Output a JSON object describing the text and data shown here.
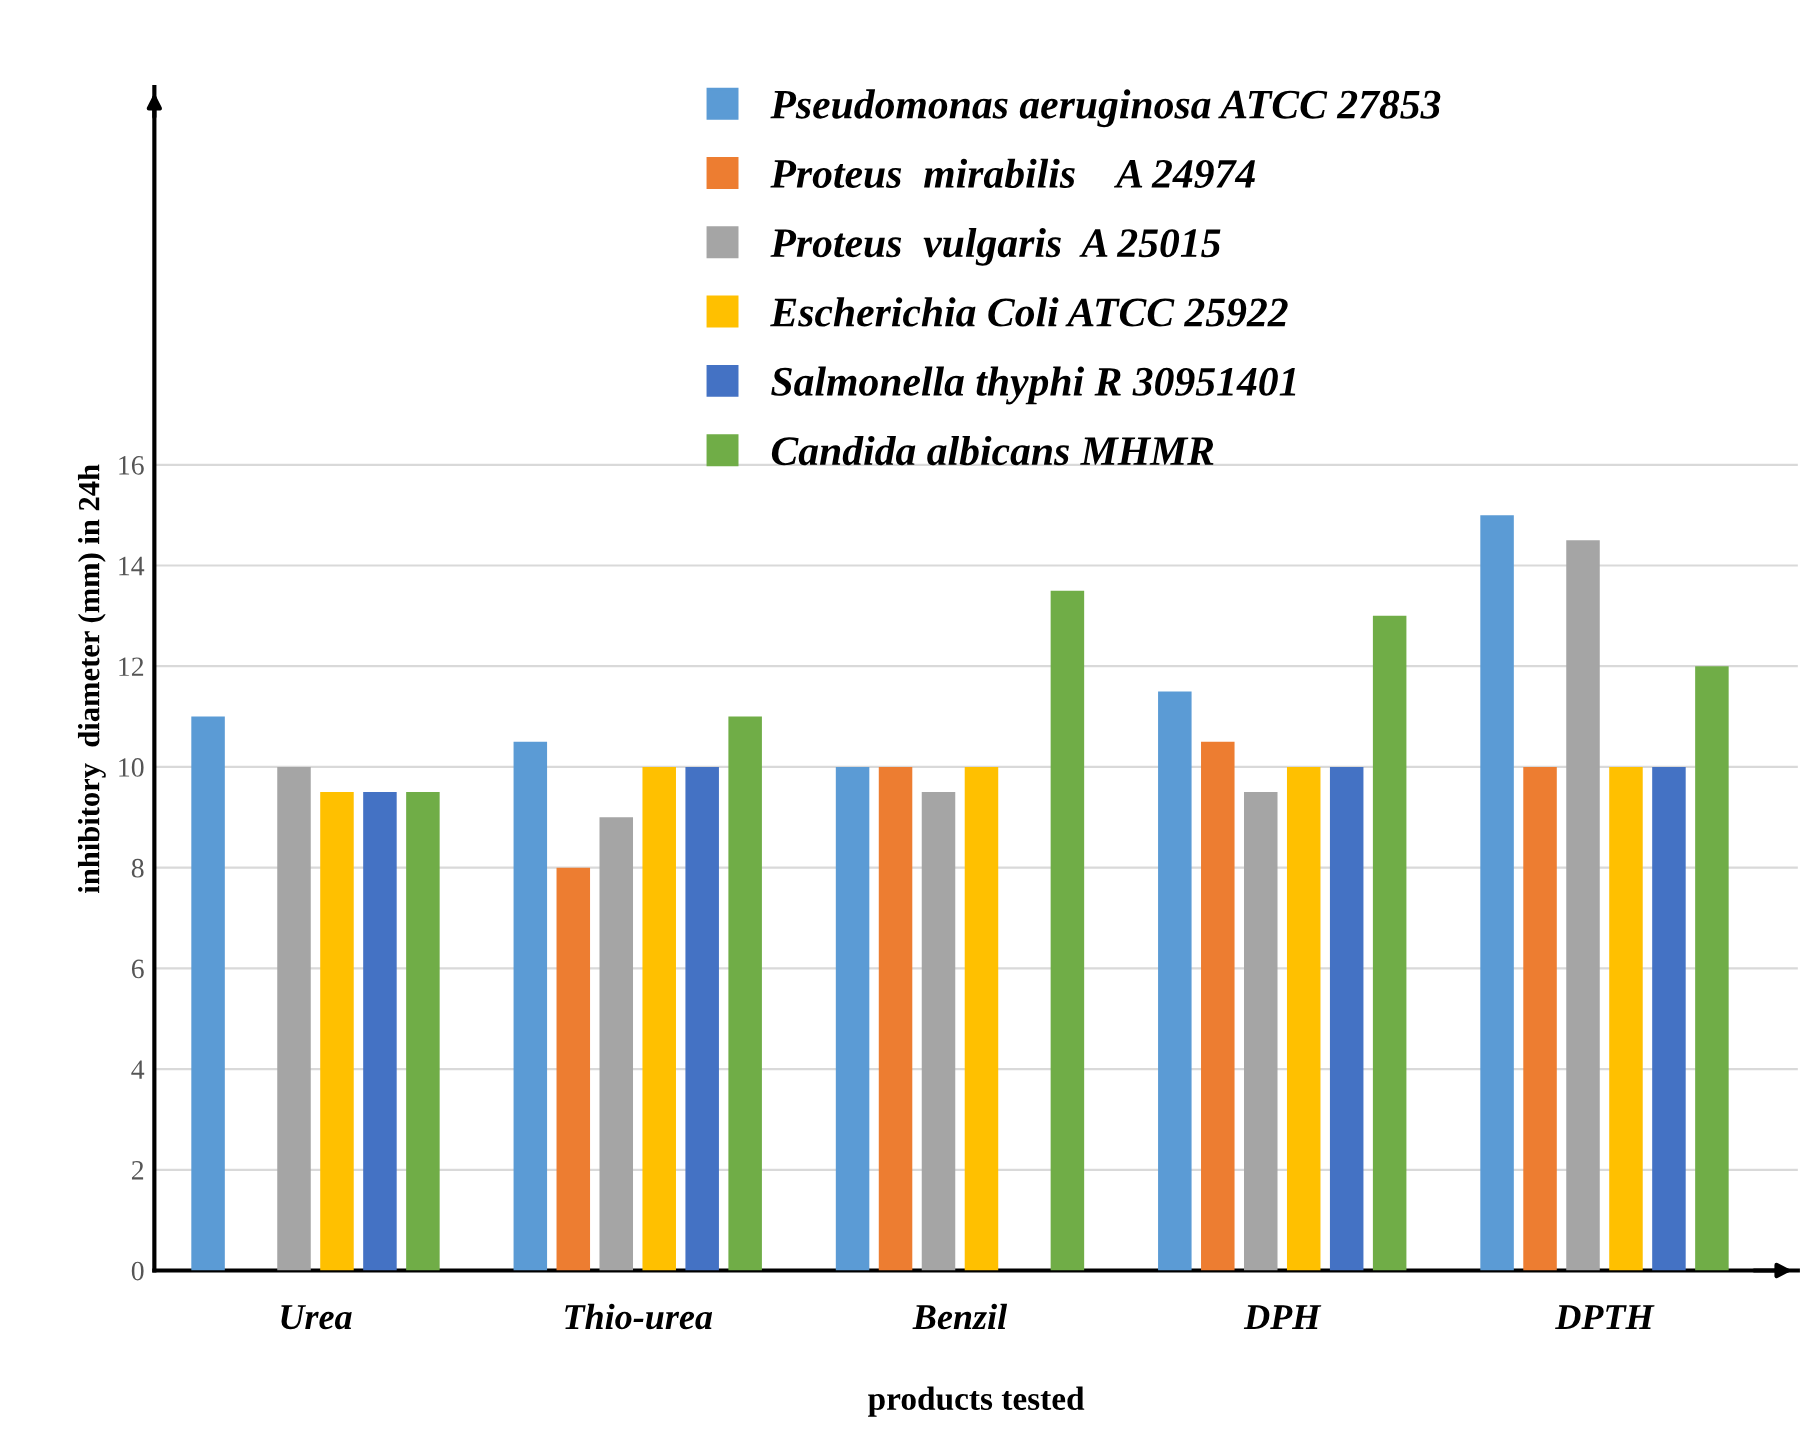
{
  "chart_data": {
    "type": "bar",
    "xlabel": "products tested",
    "ylabel": "inhibitory  diameter (mm) in 24h",
    "categories": [
      "Urea",
      "Thio-urea",
      "Benzil",
      "DPH",
      "DPTH"
    ],
    "series": [
      {
        "name": "Pseudomonas aeruginosa ATCC 27853",
        "color": "#5b9bd5",
        "values": [
          11,
          10.5,
          10,
          11.5,
          15
        ]
      },
      {
        "name": "Proteus  mirabilis    A 24974",
        "color": "#ed7d31",
        "values": [
          null,
          8,
          10,
          10.5,
          10
        ]
      },
      {
        "name": "Proteus  vulgaris  A 25015",
        "color": "#a5a5a5",
        "values": [
          10,
          9,
          9.5,
          9.5,
          14.5
        ]
      },
      {
        "name": "Escherichia Coli ATCC 25922",
        "color": "#ffc000",
        "values": [
          9.5,
          10,
          10,
          10,
          10
        ]
      },
      {
        "name": "Salmonella thyphi R 30951401",
        "color": "#4472c4",
        "values": [
          9.5,
          10,
          null,
          10,
          10
        ]
      },
      {
        "name": "Candida albicans MHMR",
        "color": "#70ad47",
        "values": [
          9.5,
          11,
          13.5,
          13,
          12
        ]
      }
    ],
    "ylim": [
      0,
      23.5
    ],
    "yticks": [
      0,
      2,
      4,
      6,
      8,
      10,
      12,
      14,
      16
    ],
    "grid": "y",
    "legend": "top"
  }
}
